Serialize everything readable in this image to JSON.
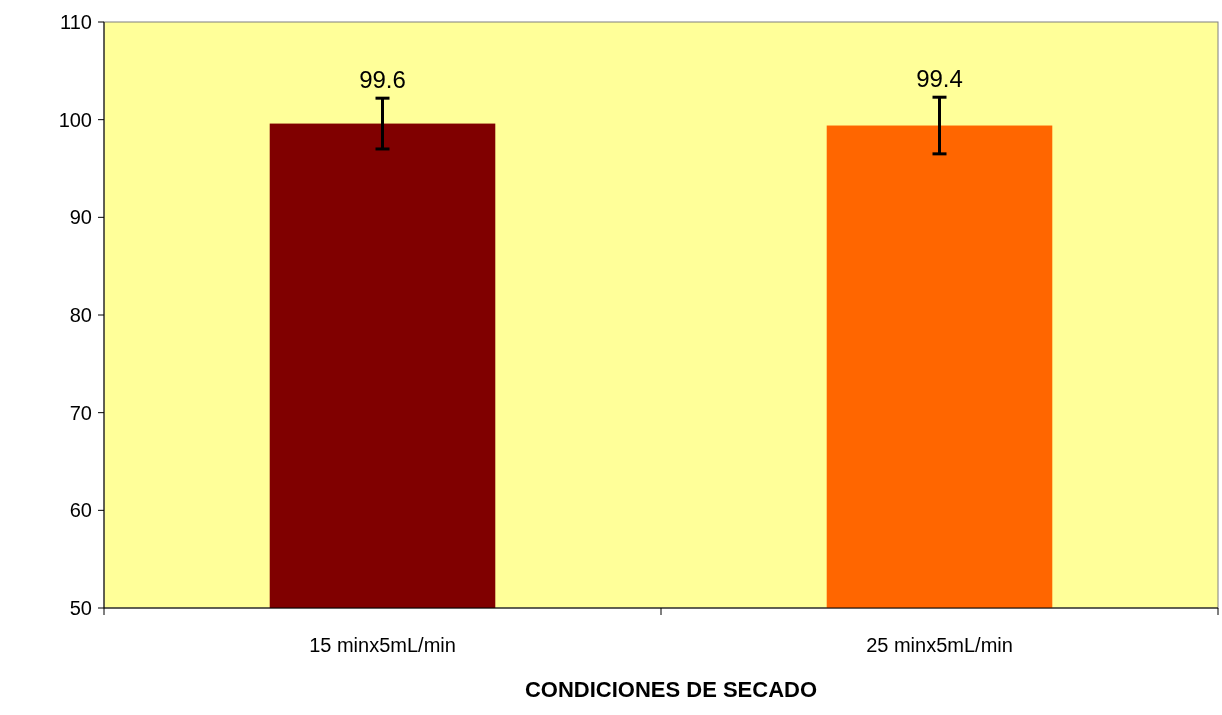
{
  "chart_data": {
    "type": "bar",
    "xlabel": "CONDICIONES DE SECADO",
    "categories": [
      "15 minx5mL/min",
      "25 minx5mL/min"
    ],
    "values": [
      99.6,
      99.4
    ],
    "colors": [
      "#800000",
      "#ff6600"
    ],
    "errors": [
      2.6,
      2.9
    ],
    "ylim": [
      50,
      110
    ],
    "yticks": [
      50,
      60,
      70,
      80,
      90,
      100,
      110
    ],
    "data_labels": true
  }
}
